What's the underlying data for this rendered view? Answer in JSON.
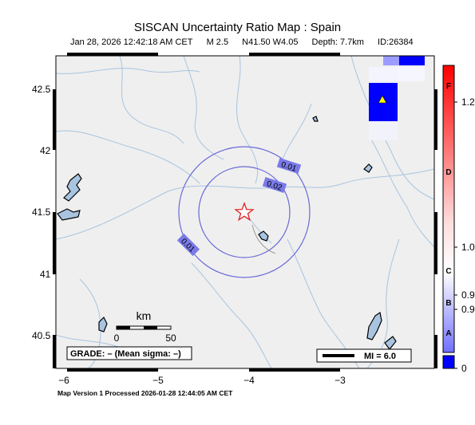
{
  "title": "SISCAN Uncertainty Ratio Map : Spain",
  "subtitle": {
    "datetime": "Jan 28, 2026 12:42:18 AM CET",
    "magnitude": "M 2.5",
    "location": "N41.50 W4.05",
    "depth": "Depth: 7.7km",
    "id": "ID:26384"
  },
  "map": {
    "lat_ticks": [
      "42.5",
      "42",
      "41.5",
      "41",
      "40.5"
    ],
    "lon_ticks": [
      "−6",
      "−5",
      "−4",
      "−3"
    ],
    "contour_labels": [
      "0.01",
      "0.02",
      "0.01"
    ],
    "epicenter_icon": "star-icon",
    "station_icon": "triangle-icon",
    "scalebar": {
      "unit": "km",
      "ticks": [
        "0",
        "50"
      ]
    },
    "grade_text": "GRADE: – (Mean sigma: –)",
    "mi_legend": "MI = 6.0"
  },
  "colorbar": {
    "letters": [
      "F",
      "D",
      "C",
      "B",
      "A"
    ],
    "values": [
      "1.2",
      "1.0",
      "0.9",
      "0.9",
      "0"
    ],
    "colors": {
      "top": "#ff0000",
      "mid": "#ffffff",
      "bottom": "#0000ff"
    }
  },
  "footer": "Map Version 1 Processed 2026-01-28 12:44:05 AM CET"
}
